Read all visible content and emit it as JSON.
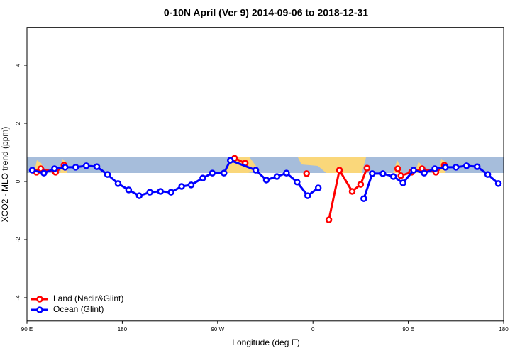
{
  "chart_data": {
    "type": "line",
    "title": "0-10N April (Ver 9)   2014-09-06 to 2018-12-31",
    "xlabel": "Longitude (deg E)",
    "ylabel": "XCO2 - MLO trend (ppm)",
    "xlim": [
      90,
      540
    ],
    "ylim": [
      -4.8,
      5.3
    ],
    "xticks": [
      {
        "value": 90,
        "label": "90 E"
      },
      180,
      {
        "value": 270,
        "label": "90 W"
      },
      {
        "value": 360,
        "label": "0"
      },
      {
        "value": 450,
        "label": "90 E"
      },
      {
        "value": 540,
        "label": "180"
      }
    ],
    "yticks": [
      -4,
      -2,
      0,
      2,
      4
    ],
    "legend": "bottom-left",
    "series": [
      {
        "name": "Land (Nadir&Glint)",
        "color": "#ff0000",
        "x": [
          99,
          103,
          117,
          125,
          200,
          286,
          296,
          320,
          354,
          358,
          375,
          385,
          397,
          405,
          411,
          430,
          440,
          443,
          453,
          463,
          476,
          484
        ],
        "values": [
          0.32,
          0.44,
          0.32,
          0.56,
          null,
          0.8,
          0.63,
          null,
          0.27,
          null,
          -1.32,
          0.39,
          -0.34,
          -0.1,
          0.46,
          null,
          0.44,
          0.2,
          0.32,
          0.44,
          0.32,
          0.56
        ]
      },
      {
        "name": "Ocean (Glint)",
        "color": "#0000ff",
        "x": [
          95,
          106,
          116,
          126,
          136,
          146,
          156,
          166,
          176,
          186,
          196,
          206,
          216,
          226,
          236,
          245,
          256,
          265,
          276,
          282,
          306,
          316,
          326,
          335,
          345,
          355,
          365,
          386,
          408,
          416,
          426,
          436,
          445,
          455,
          465,
          475,
          485,
          495,
          505,
          515,
          525,
          535
        ],
        "values": [
          0.39,
          0.29,
          0.44,
          0.49,
          0.49,
          0.54,
          0.51,
          0.24,
          -0.07,
          -0.29,
          -0.49,
          -0.37,
          -0.34,
          -0.37,
          -0.17,
          -0.12,
          0.12,
          0.29,
          0.29,
          0.73,
          0.39,
          0.05,
          0.17,
          0.29,
          -0.02,
          -0.49,
          -0.22,
          null,
          -0.59,
          0.27,
          0.27,
          0.17,
          -0.05,
          0.39,
          0.29,
          0.44,
          0.49,
          0.49,
          0.54,
          0.51,
          0.24,
          -0.07
        ]
      }
    ]
  }
}
